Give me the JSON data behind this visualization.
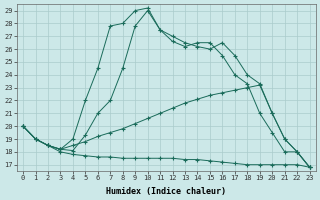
{
  "xlabel": "Humidex (Indice chaleur)",
  "background_color": "#cce8e8",
  "grid_color": "#b0d0d0",
  "line_color": "#1a6b5a",
  "xlim": [
    -0.5,
    23.5
  ],
  "ylim": [
    16.5,
    29.5
  ],
  "xticks": [
    0,
    1,
    2,
    3,
    4,
    5,
    6,
    7,
    8,
    9,
    10,
    11,
    12,
    13,
    14,
    15,
    16,
    17,
    18,
    19,
    20,
    21,
    22,
    23
  ],
  "yticks": [
    17,
    18,
    19,
    20,
    21,
    22,
    23,
    24,
    25,
    26,
    27,
    28,
    29
  ],
  "lines": [
    {
      "x": [
        0,
        1,
        2,
        3,
        4,
        5,
        6,
        7,
        8,
        9,
        10,
        11,
        12,
        13,
        14,
        15,
        16,
        17,
        18,
        19,
        20,
        21,
        22,
        23
      ],
      "y": [
        20,
        19,
        18.5,
        18.2,
        19.0,
        22.0,
        24.5,
        27.8,
        28.0,
        29.0,
        29.2,
        27.5,
        27.0,
        26.5,
        26.2,
        26.0,
        26.5,
        25.5,
        24.0,
        23.3,
        21.0,
        19.0,
        18.0,
        16.8
      ]
    },
    {
      "x": [
        0,
        1,
        2,
        3,
        4,
        5,
        6,
        7,
        8,
        9,
        10,
        11,
        12,
        13,
        14,
        15,
        16,
        17,
        18,
        19,
        20,
        21,
        22,
        23
      ],
      "y": [
        20,
        19,
        18.5,
        18.2,
        18.1,
        19.3,
        21.0,
        22.0,
        24.5,
        27.8,
        29.0,
        27.5,
        26.6,
        26.2,
        26.5,
        26.5,
        25.5,
        24.0,
        23.3,
        21.0,
        19.5,
        18.0,
        18.0,
        16.8
      ]
    },
    {
      "x": [
        0,
        1,
        2,
        3,
        4,
        5,
        6,
        7,
        8,
        9,
        10,
        11,
        12,
        13,
        14,
        15,
        16,
        17,
        18,
        19,
        20,
        21,
        22,
        23
      ],
      "y": [
        20,
        19,
        18.5,
        18.2,
        18.5,
        18.8,
        19.2,
        19.5,
        19.8,
        20.2,
        20.6,
        21.0,
        21.4,
        21.8,
        22.1,
        22.4,
        22.6,
        22.8,
        23.0,
        23.2,
        21.0,
        19.0,
        18.0,
        16.8
      ]
    },
    {
      "x": [
        0,
        1,
        2,
        3,
        4,
        5,
        6,
        7,
        8,
        9,
        10,
        11,
        12,
        13,
        14,
        15,
        16,
        17,
        18,
        19,
        20,
        21,
        22,
        23
      ],
      "y": [
        20,
        19,
        18.5,
        18.0,
        17.8,
        17.7,
        17.6,
        17.6,
        17.5,
        17.5,
        17.5,
        17.5,
        17.5,
        17.4,
        17.4,
        17.3,
        17.2,
        17.1,
        17.0,
        17.0,
        17.0,
        17.0,
        17.0,
        16.8
      ]
    }
  ]
}
